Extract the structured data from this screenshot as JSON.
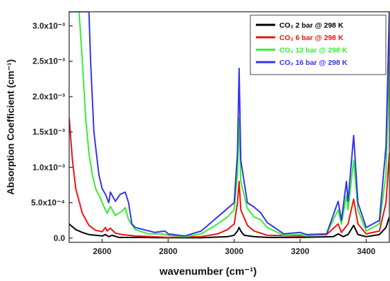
{
  "chart_data": {
    "type": "line",
    "title": "",
    "xlabel": "wavenumber (cm⁻¹)",
    "ylabel": "Absorption Coefficient (cm⁻¹)",
    "xlim": [
      2500,
      3470
    ],
    "ylim": [
      -6e-05,
      0.0032
    ],
    "x_ticks": [
      2600,
      2800,
      3000,
      3200,
      3400
    ],
    "x_tick_labels": [
      "2600",
      "2800",
      "3000",
      "3200",
      "3400"
    ],
    "y_ticks": [
      0,
      0.0005,
      0.001,
      0.0015,
      0.002,
      0.0025,
      0.003
    ],
    "y_tick_labels": [
      "0.0",
      "5.0x10⁻⁴",
      "1.0x10⁻³",
      "1.5x10⁻³",
      "2.0x10⁻³",
      "2.5x10⁻³",
      "3.0x10⁻³"
    ],
    "grid": false,
    "legend_position": "top-right",
    "series": [
      {
        "name": "CO₂ 2 bar @ 298 K",
        "color": "#000000",
        "points": [
          [
            2500,
            0.0002
          ],
          [
            2520,
            0.00012
          ],
          [
            2540,
            8e-05
          ],
          [
            2560,
            5e-05
          ],
          [
            2580,
            4e-05
          ],
          [
            2600,
            3e-05
          ],
          [
            2610,
            5e-05
          ],
          [
            2620,
            2e-05
          ],
          [
            2630,
            4e-05
          ],
          [
            2650,
            1e-05
          ],
          [
            2700,
            1e-05
          ],
          [
            2800,
            5e-06
          ],
          [
            2900,
            5e-06
          ],
          [
            2980,
            2e-05
          ],
          [
            3000,
            4e-05
          ],
          [
            3010,
            0.0001
          ],
          [
            3015,
            0.00015
          ],
          [
            3020,
            0.0001
          ],
          [
            3030,
            4e-05
          ],
          [
            3060,
            2e-05
          ],
          [
            3100,
            1e-05
          ],
          [
            3200,
            1e-05
          ],
          [
            3300,
            2e-05
          ],
          [
            3315,
            6e-05
          ],
          [
            3330,
            2e-05
          ],
          [
            3345,
            5e-05
          ],
          [
            3362,
            0.00018
          ],
          [
            3375,
            5e-05
          ],
          [
            3400,
            2e-05
          ],
          [
            3440,
            5e-05
          ],
          [
            3460,
            0.00015
          ],
          [
            3470,
            0.0003
          ]
        ]
      },
      {
        "name": "CO₂ 6 bar @ 298 K",
        "color": "#ee1111",
        "points": [
          [
            2500,
            0.0017
          ],
          [
            2510,
            0.0011
          ],
          [
            2520,
            0.0007
          ],
          [
            2540,
            0.00035
          ],
          [
            2560,
            0.00018
          ],
          [
            2580,
            0.00011
          ],
          [
            2600,
            9e-05
          ],
          [
            2610,
            0.00015
          ],
          [
            2615,
            0.0001
          ],
          [
            2625,
            0.00014
          ],
          [
            2640,
            7e-05
          ],
          [
            2660,
            5e-05
          ],
          [
            2700,
            3e-05
          ],
          [
            2750,
            2e-05
          ],
          [
            2800,
            1e-05
          ],
          [
            2900,
            2e-05
          ],
          [
            2950,
            6e-05
          ],
          [
            2980,
            0.00012
          ],
          [
            3000,
            0.0002
          ],
          [
            3010,
            0.0005
          ],
          [
            3015,
            0.0008
          ],
          [
            3020,
            0.0004
          ],
          [
            3040,
            0.00018
          ],
          [
            3060,
            0.0001
          ],
          [
            3100,
            4e-05
          ],
          [
            3200,
            3e-05
          ],
          [
            3280,
            5e-05
          ],
          [
            3315,
            0.0002
          ],
          [
            3325,
            8e-05
          ],
          [
            3345,
            0.0002
          ],
          [
            3362,
            0.00055
          ],
          [
            3375,
            0.0002
          ],
          [
            3400,
            6e-05
          ],
          [
            3440,
            0.0001
          ],
          [
            3460,
            0.0005
          ],
          [
            3470,
            0.0012
          ]
        ]
      },
      {
        "name": "CO₂ 12 bar @ 298 K",
        "color": "#33ee33",
        "points": [
          [
            2500,
            0.0032
          ],
          [
            2530,
            0.0032
          ],
          [
            2540,
            0.0025
          ],
          [
            2550,
            0.0017
          ],
          [
            2560,
            0.0012
          ],
          [
            2570,
            0.0009
          ],
          [
            2580,
            0.0007
          ],
          [
            2595,
            0.00056
          ],
          [
            2605,
            0.00045
          ],
          [
            2615,
            0.00035
          ],
          [
            2625,
            0.00045
          ],
          [
            2640,
            0.00032
          ],
          [
            2660,
            0.00038
          ],
          [
            2670,
            0.00043
          ],
          [
            2680,
            0.00026
          ],
          [
            2700,
            0.00012
          ],
          [
            2740,
            6e-05
          ],
          [
            2780,
            6e-05
          ],
          [
            2800,
            4e-05
          ],
          [
            2850,
            2e-05
          ],
          [
            2900,
            6e-05
          ],
          [
            2950,
            0.0002
          ],
          [
            2980,
            0.0003
          ],
          [
            3000,
            0.0004
          ],
          [
            3010,
            0.0009
          ],
          [
            3015,
            0.0017
          ],
          [
            3020,
            0.0008
          ],
          [
            3040,
            0.00042
          ],
          [
            3060,
            0.0003
          ],
          [
            3080,
            0.00026
          ],
          [
            3100,
            0.00015
          ],
          [
            3150,
            4e-05
          ],
          [
            3200,
            5e-05
          ],
          [
            3220,
            3e-05
          ],
          [
            3280,
            6e-05
          ],
          [
            3315,
            0.0004
          ],
          [
            3325,
            0.0002
          ],
          [
            3340,
            0.0006
          ],
          [
            3345,
            0.0004
          ],
          [
            3362,
            0.0011
          ],
          [
            3375,
            0.0004
          ],
          [
            3400,
            0.0001
          ],
          [
            3440,
            0.0002
          ],
          [
            3460,
            0.0009
          ],
          [
            3470,
            0.0025
          ]
        ]
      },
      {
        "name": "CO₂ 16 bar @ 298 K",
        "color": "#3333ee",
        "points": [
          [
            2500,
            0.0032
          ],
          [
            2560,
            0.0032
          ],
          [
            2565,
            0.0025
          ],
          [
            2575,
            0.0015
          ],
          [
            2590,
            0.0009
          ],
          [
            2600,
            0.0007
          ],
          [
            2610,
            0.00062
          ],
          [
            2620,
            0.0005
          ],
          [
            2625,
            0.00065
          ],
          [
            2640,
            0.00052
          ],
          [
            2655,
            0.00062
          ],
          [
            2670,
            0.00065
          ],
          [
            2680,
            0.0005
          ],
          [
            2690,
            0.0002
          ],
          [
            2700,
            0.00015
          ],
          [
            2760,
            8e-05
          ],
          [
            2790,
            0.0001
          ],
          [
            2800,
            6e-05
          ],
          [
            2850,
            3e-05
          ],
          [
            2900,
            0.0001
          ],
          [
            2950,
            0.0003
          ],
          [
            2980,
            0.00042
          ],
          [
            3000,
            0.0005
          ],
          [
            3010,
            0.0012
          ],
          [
            3015,
            0.0024
          ],
          [
            3020,
            0.0011
          ],
          [
            3040,
            0.0005
          ],
          [
            3060,
            0.00044
          ],
          [
            3080,
            0.00036
          ],
          [
            3100,
            0.00022
          ],
          [
            3150,
            6e-05
          ],
          [
            3200,
            8e-05
          ],
          [
            3220,
            5e-05
          ],
          [
            3280,
            6e-05
          ],
          [
            3315,
            0.00052
          ],
          [
            3325,
            0.00025
          ],
          [
            3340,
            0.0008
          ],
          [
            3345,
            0.00052
          ],
          [
            3362,
            0.00145
          ],
          [
            3375,
            0.0005
          ],
          [
            3400,
            0.00015
          ],
          [
            3440,
            0.00025
          ],
          [
            3460,
            0.0013
          ],
          [
            3470,
            0.0032
          ]
        ]
      }
    ]
  },
  "legend": {
    "entries": [
      "CO₂ 2 bar @ 298 K",
      "CO₂ 6 bar @ 298 K",
      "CO₂ 12 bar @ 298 K",
      "CO₂ 16 bar @ 298 K"
    ]
  }
}
